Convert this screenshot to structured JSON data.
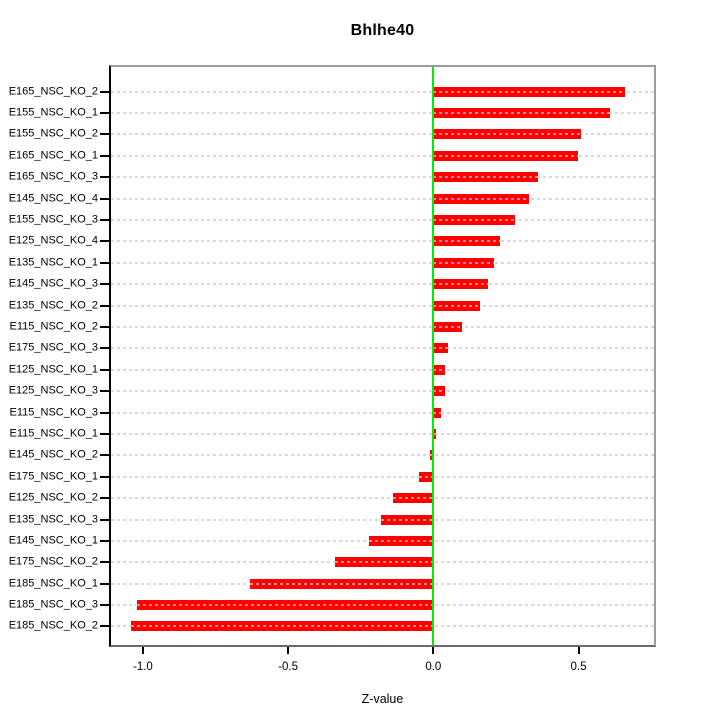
{
  "title": "Bhlhe40",
  "chart_data": {
    "type": "bar",
    "orientation": "horizontal",
    "title": "Bhlhe40",
    "xlabel": "Z-value",
    "ylabel": "",
    "xlim": [
      -1.11,
      0.76
    ],
    "x_ticks": [
      -1.0,
      -0.5,
      0.0,
      0.5
    ],
    "x_tick_labels": [
      "-1.0",
      "-0.5",
      "0.0",
      "0.5"
    ],
    "grid": true,
    "grid_style": "dashed",
    "legend_position": "none",
    "bar_color": "#ff0000",
    "bar_dash_color": "#ff9999",
    "zero_line_color": "#00ee00",
    "grid_color": "#d9d9d9",
    "categories": [
      "E165_NSC_KO_2",
      "E155_NSC_KO_1",
      "E155_NSC_KO_2",
      "E165_NSC_KO_1",
      "E165_NSC_KO_3",
      "E145_NSC_KO_4",
      "E155_NSC_KO_3",
      "E125_NSC_KO_4",
      "E135_NSC_KO_1",
      "E145_NSC_KO_3",
      "E135_NSC_KO_2",
      "E115_NSC_KO_2",
      "E175_NSC_KO_3",
      "E125_NSC_KO_1",
      "E125_NSC_KO_3",
      "E115_NSC_KO_3",
      "E115_NSC_KO_1",
      "E145_NSC_KO_2",
      "E175_NSC_KO_1",
      "E125_NSC_KO_2",
      "E135_NSC_KO_3",
      "E145_NSC_KO_1",
      "E175_NSC_KO_2",
      "E185_NSC_KO_1",
      "E185_NSC_KO_3",
      "E185_NSC_KO_2"
    ],
    "values": [
      0.66,
      0.61,
      0.51,
      0.5,
      0.36,
      0.33,
      0.28,
      0.23,
      0.21,
      0.19,
      0.16,
      0.1,
      0.05,
      0.04,
      0.04,
      0.025,
      0.01,
      -0.01,
      -0.05,
      -0.14,
      -0.18,
      -0.22,
      -0.34,
      -0.63,
      -1.02,
      -1.04
    ]
  }
}
